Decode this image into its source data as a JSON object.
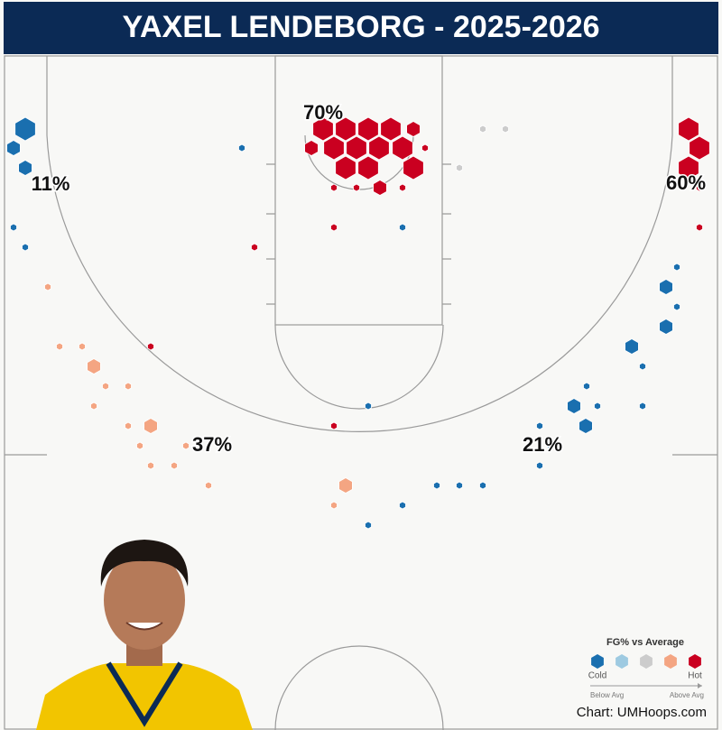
{
  "chart_data": {
    "type": "hexbin",
    "title": "YAXEL LENDEBORG - 2025-2026",
    "credit": "Chart: UMHoops.com",
    "xlim": [
      0,
      800
    ],
    "ylim": [
      62,
      809
    ],
    "legend": {
      "title": "FG% vs Average",
      "colors": [
        "#1a6faf",
        "#9ecae1",
        "#cccccc",
        "#f4a582",
        "#ca0020"
      ],
      "low": "Cold",
      "high": "Hot",
      "left": "Below Avg",
      "right": "Above Avg"
    },
    "zones": [
      {
        "value": 70,
        "label": "70%"
      },
      {
        "value": 11,
        "label": "11%"
      },
      {
        "value": 60,
        "label": "60%"
      },
      {
        "value": 37,
        "label": "37%"
      },
      {
        "value": 21,
        "label": "21%"
      }
    ],
    "hexes": {
      "x": [
        28,
        15,
        28,
        15,
        28,
        268,
        358,
        383,
        408,
        433,
        458,
        345,
        370,
        395,
        420,
        446,
        471,
        383,
        408,
        458,
        370,
        395,
        421,
        446,
        535,
        560,
        509,
        370,
        446,
        282,
        763,
        775,
        763,
        775,
        775,
        750,
        738,
        750,
        738,
        700,
        712,
        650,
        636,
        662,
        712,
        649,
        598,
        610,
        598,
        484,
        509,
        535,
        446,
        408,
        408,
        53,
        66,
        91,
        104,
        117,
        142,
        104,
        142,
        167,
        155,
        206,
        167,
        193,
        231,
        383,
        370,
        167,
        370
      ],
      "y": [
        143,
        164,
        186,
        252,
        274,
        164,
        143,
        143,
        143,
        143,
        143,
        164,
        164,
        164,
        164,
        164,
        164,
        186,
        186,
        186,
        208,
        208,
        208,
        208,
        143,
        143,
        186,
        252,
        252,
        274,
        143,
        164,
        186,
        208,
        252,
        296,
        318,
        340,
        362,
        384,
        406,
        428,
        450,
        450,
        450,
        472,
        472,
        494,
        516,
        538,
        538,
        538,
        560,
        582,
        450,
        318,
        384,
        384,
        406,
        428,
        428,
        450,
        472,
        472,
        494,
        494,
        516,
        516,
        538,
        538,
        560,
        384,
        472
      ],
      "size": [
        3,
        2,
        2,
        1,
        1,
        1,
        3,
        3,
        3,
        3,
        2,
        2,
        3,
        3,
        3,
        3,
        1,
        3,
        3,
        3,
        1,
        1,
        2,
        1,
        1,
        1,
        1,
        1,
        1,
        1,
        3,
        3,
        3,
        1,
        1,
        1,
        2,
        1,
        2,
        2,
        1,
        1,
        2,
        1,
        1,
        2,
        1,
        1,
        1,
        1,
        1,
        1,
        1,
        1,
        1,
        1,
        1,
        1,
        2,
        1,
        1,
        1,
        1,
        2,
        1,
        1,
        1,
        1,
        1,
        2,
        1,
        1,
        1
      ],
      "level": [
        0,
        0,
        0,
        0,
        0,
        0,
        4,
        4,
        4,
        4,
        4,
        4,
        4,
        4,
        4,
        4,
        4,
        4,
        4,
        4,
        4,
        4,
        4,
        4,
        2,
        2,
        2,
        4,
        0,
        4,
        4,
        4,
        4,
        4,
        4,
        0,
        0,
        0,
        0,
        0,
        0,
        0,
        0,
        0,
        0,
        0,
        0,
        0,
        0,
        0,
        0,
        0,
        0,
        0,
        0,
        3,
        3,
        3,
        3,
        3,
        3,
        3,
        3,
        3,
        3,
        3,
        3,
        3,
        3,
        3,
        3,
        4,
        4
      ]
    }
  }
}
